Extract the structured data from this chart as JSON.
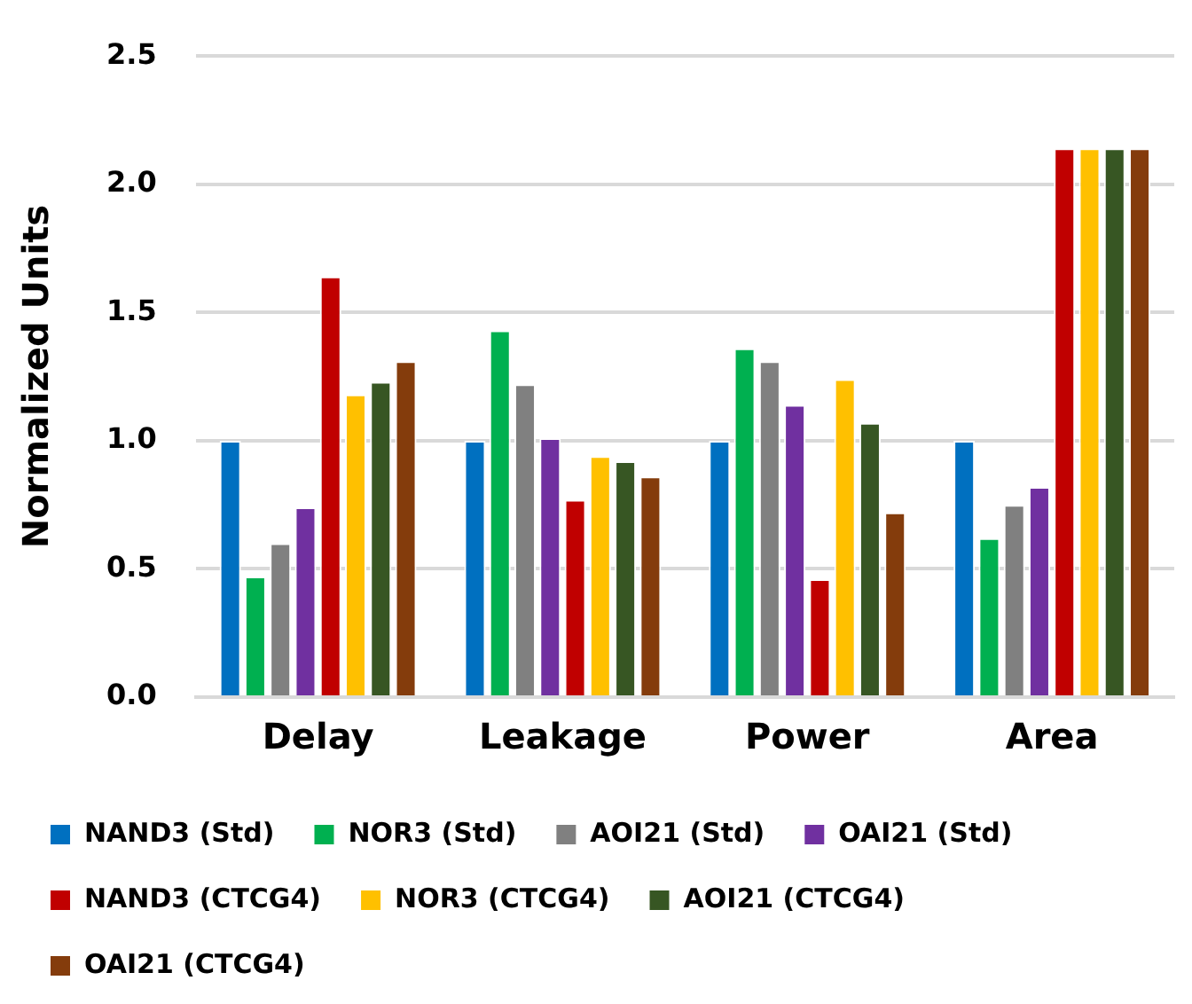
{
  "chart_data": {
    "type": "bar",
    "ylabel": "Normalized Units",
    "categories": [
      "Delay",
      "Leakage",
      "Power",
      "Area"
    ],
    "series": [
      {
        "name": "NAND3 (Std)",
        "color": "#0070c0",
        "values": [
          1.0,
          1.0,
          1.0,
          1.0
        ]
      },
      {
        "name": "NOR3 (Std)",
        "color": "#00b050",
        "values": [
          0.47,
          1.43,
          1.36,
          0.62
        ]
      },
      {
        "name": "AOI21 (Std)",
        "color": "#808080",
        "values": [
          0.6,
          1.22,
          1.31,
          0.75
        ]
      },
      {
        "name": "OAI21 (Std)",
        "color": "#7030a0",
        "values": [
          0.74,
          1.01,
          1.14,
          0.82
        ]
      },
      {
        "name": "NAND3 (CTCG4)",
        "color": "#c00000",
        "values": [
          1.64,
          0.77,
          0.46,
          2.14
        ]
      },
      {
        "name": "NOR3 (CTCG4)",
        "color": "#ffc000",
        "values": [
          1.18,
          0.94,
          1.24,
          2.14
        ]
      },
      {
        "name": "AOI21 (CTCG4)",
        "color": "#375623",
        "values": [
          1.23,
          0.92,
          1.07,
          2.14
        ]
      },
      {
        "name": "OAI21 (CTCG4)",
        "color": "#843c0c",
        "values": [
          1.31,
          0.86,
          0.72,
          2.14
        ]
      }
    ],
    "ylim": [
      0,
      2.5
    ],
    "yticks": [
      {
        "value": 0,
        "label": "0.0"
      },
      {
        "value": 0.5,
        "label": "0.5"
      },
      {
        "value": 1,
        "label": "1.0"
      },
      {
        "value": 1.5,
        "label": "1.5"
      },
      {
        "value": 2,
        "label": "2.0"
      },
      {
        "value": 2.5,
        "label": "2.5"
      }
    ],
    "grid": "y",
    "legend": "bottom"
  }
}
